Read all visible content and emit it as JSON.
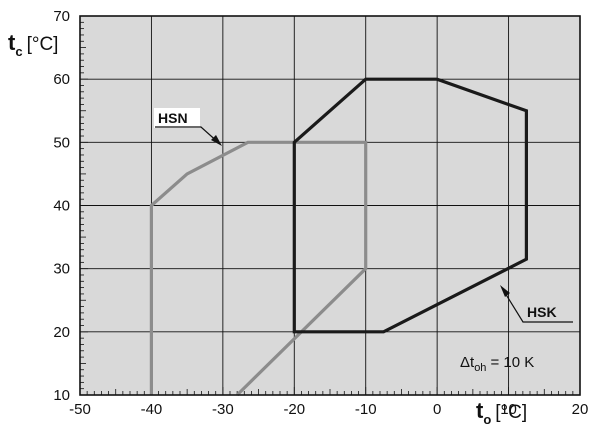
{
  "chart_data": {
    "type": "line",
    "xlim": [
      -50,
      20
    ],
    "ylim": [
      10,
      70
    ],
    "x_ticks": [
      -50,
      -40,
      -30,
      -20,
      -10,
      0,
      10,
      20
    ],
    "y_ticks": [
      10,
      20,
      30,
      40,
      50,
      60,
      70
    ],
    "xlabel": {
      "symbol": "t",
      "subscript": "o",
      "unit": "[°C]"
    },
    "ylabel": {
      "symbol": "t",
      "subscript": "c",
      "unit": "[°C]"
    },
    "grid": true,
    "series": [
      {
        "name": "HSN",
        "color": "#8c8c8c",
        "polygon": [
          {
            "x": -40,
            "y": 10
          },
          {
            "x": -40,
            "y": 40
          },
          {
            "x": -35,
            "y": 45
          },
          {
            "x": -26.5,
            "y": 50
          },
          {
            "x": -10,
            "y": 50
          },
          {
            "x": -10,
            "y": 30
          },
          {
            "x": -28,
            "y": 10
          }
        ],
        "closed": false
      },
      {
        "name": "HSK",
        "color": "#1a1a1a",
        "polygon": [
          {
            "x": -20,
            "y": 50
          },
          {
            "x": -10,
            "y": 60
          },
          {
            "x": 0,
            "y": 60
          },
          {
            "x": 12.5,
            "y": 55
          },
          {
            "x": 12.5,
            "y": 31.5
          },
          {
            "x": -7.5,
            "y": 20
          },
          {
            "x": -20,
            "y": 20
          }
        ],
        "closed": true
      }
    ],
    "annotations": [
      {
        "name": "delta-t-oh",
        "symbol": "Δt",
        "subscript": "oh",
        "text": "= 10 K"
      }
    ]
  }
}
